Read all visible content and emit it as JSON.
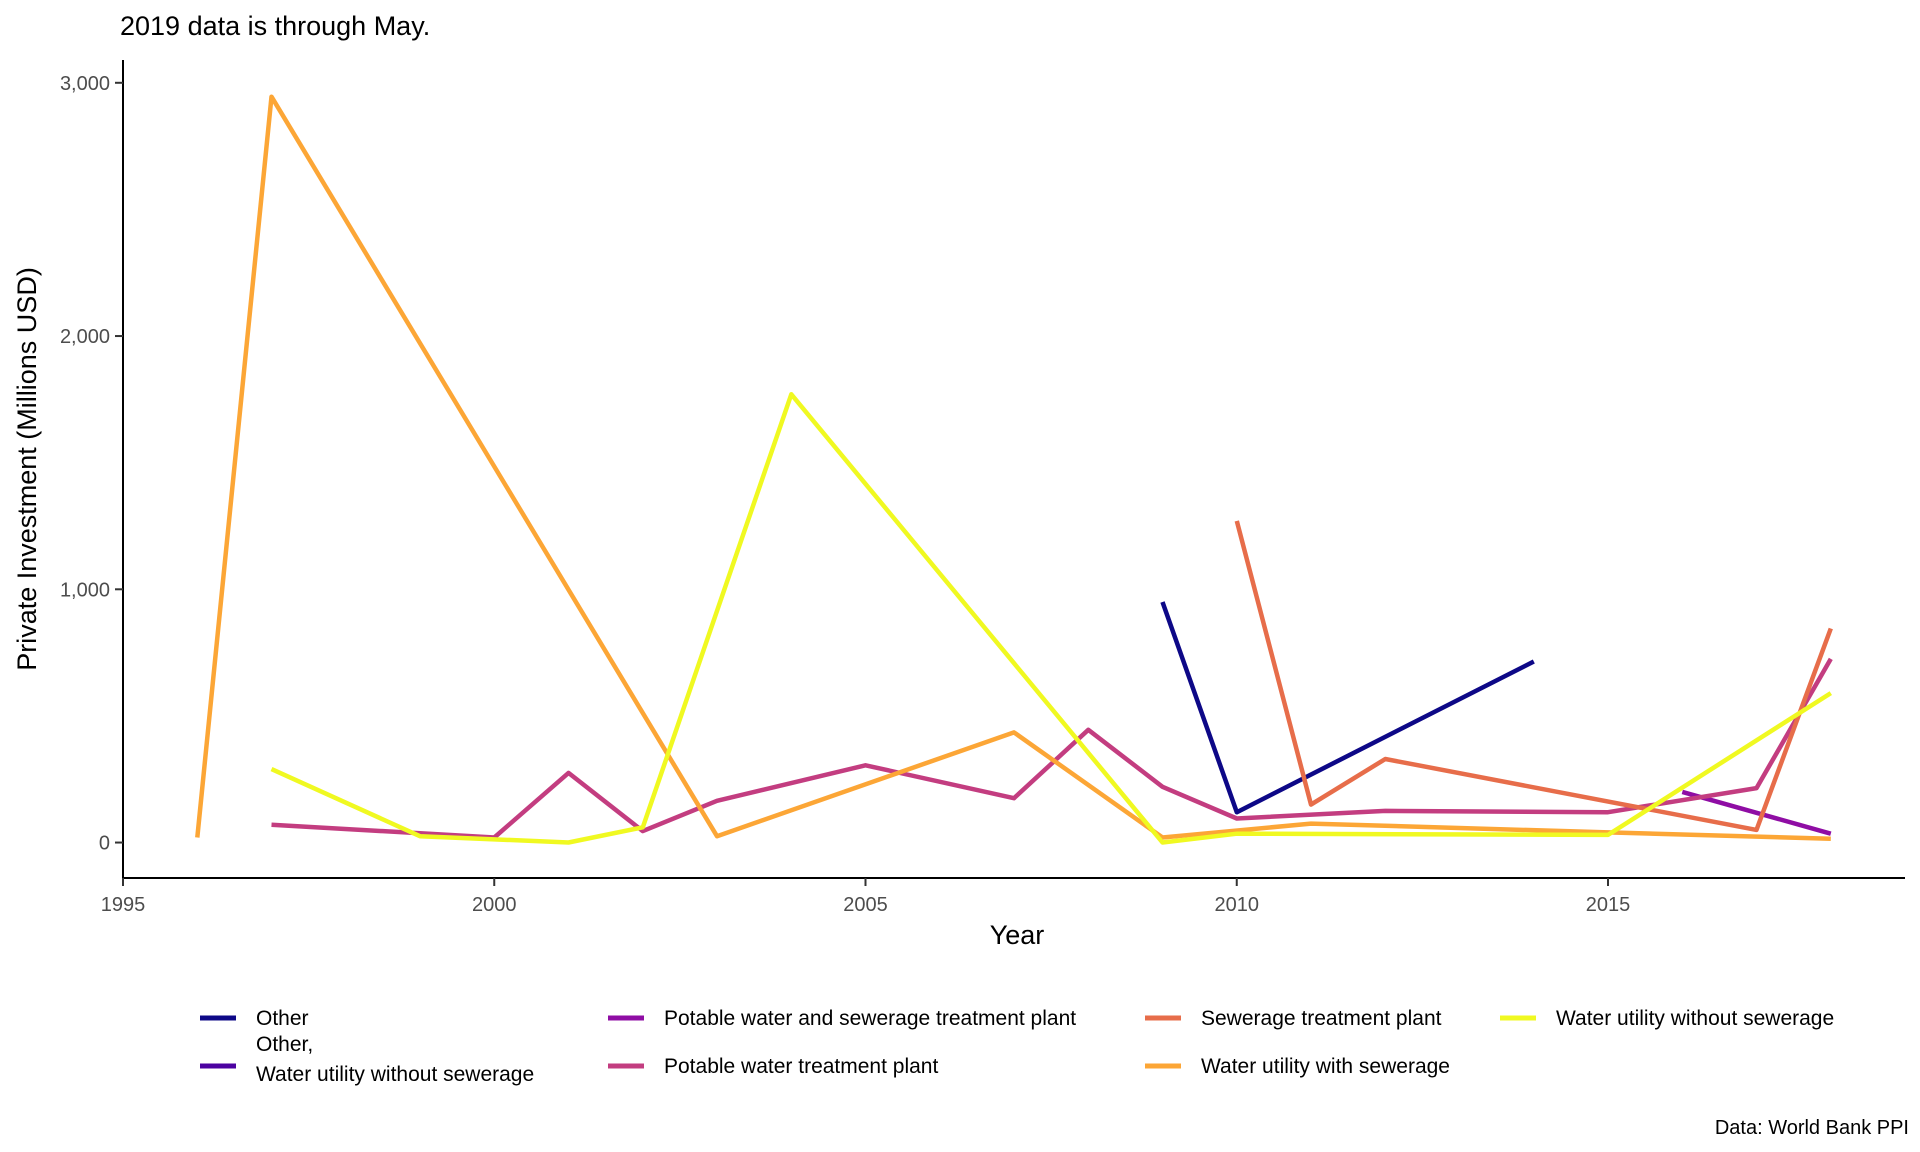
{
  "chart_data": {
    "type": "line",
    "subtitle": "2019 data is through May.",
    "xlabel": "Year",
    "ylabel": "Private Investment (Millions USD)",
    "caption": "Data: World Bank PPI",
    "xlim": [
      1995,
      2019
    ],
    "ylim": [
      -140,
      3090
    ],
    "x_ticks": [
      1995,
      2000,
      2005,
      2010,
      2015
    ],
    "x_tick_labels": [
      "1995",
      "2000",
      "2005",
      "2010",
      "2015"
    ],
    "y_ticks": [
      0,
      1000,
      2000,
      3000
    ],
    "y_tick_labels": [
      "0",
      "1,000",
      "2,000",
      "3,000"
    ],
    "grid": false,
    "legend_position": "bottom",
    "series": [
      {
        "name": "Other",
        "color": "#0d0887",
        "points": [
          [
            2009,
            950
          ],
          [
            2010,
            120
          ],
          [
            2014,
            715
          ]
        ]
      },
      {
        "name": "Other,\nWater utility without sewerage",
        "color": "#4c02a1",
        "points": []
      },
      {
        "name": "Potable water and sewerage treatment plant",
        "color": "#8f0da4",
        "points": [
          [
            2016,
            200
          ],
          [
            2018,
            35
          ]
        ]
      },
      {
        "name": "Potable water treatment plant",
        "color": "#c33d80",
        "points": [
          [
            1997,
            70
          ],
          [
            2000,
            20
          ],
          [
            2001,
            275
          ],
          [
            2002,
            45
          ],
          [
            2003,
            165
          ],
          [
            2005,
            305
          ],
          [
            2007,
            175
          ],
          [
            2008,
            445
          ],
          [
            2009,
            220
          ],
          [
            2010,
            95
          ],
          [
            2012,
            125
          ],
          [
            2015,
            120
          ],
          [
            2017,
            215
          ],
          [
            2018,
            725
          ]
        ]
      },
      {
        "name": "Sewerage treatment plant",
        "color": "#e76d4a",
        "points": [
          [
            2010,
            1270
          ],
          [
            2011,
            150
          ],
          [
            2012,
            330
          ],
          [
            2017,
            50
          ],
          [
            2018,
            845
          ]
        ]
      },
      {
        "name": "Water utility with sewerage",
        "color": "#fca636",
        "points": [
          [
            1996,
            20
          ],
          [
            1997,
            2945
          ],
          [
            2003,
            25
          ],
          [
            2007,
            435
          ],
          [
            2009,
            20
          ],
          [
            2011,
            75
          ],
          [
            2015,
            40
          ],
          [
            2018,
            15
          ]
        ]
      },
      {
        "name": "Water utility without sewerage",
        "color": "#f0f921",
        "points": [
          [
            1997,
            290
          ],
          [
            1999,
            25
          ],
          [
            2001,
            0
          ],
          [
            2002,
            60
          ],
          [
            2004,
            1770
          ],
          [
            2009,
            0
          ],
          [
            2010,
            35
          ],
          [
            2015,
            30
          ],
          [
            2018,
            590
          ]
        ]
      }
    ]
  }
}
